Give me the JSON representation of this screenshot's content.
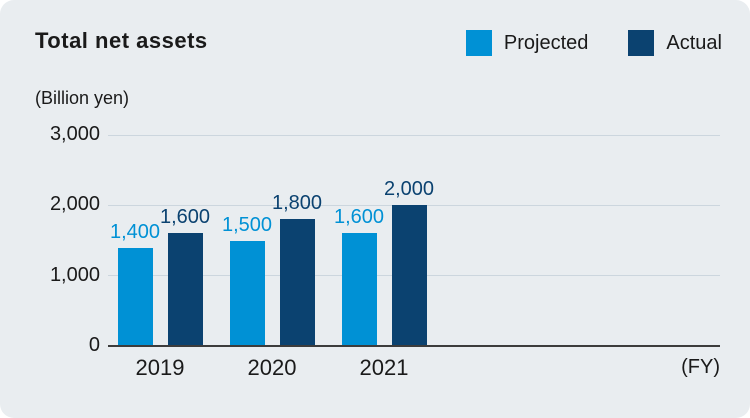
{
  "card": {
    "title": "Total net assets",
    "unit_label": "(Billion yen)",
    "fy_label": "(FY)"
  },
  "colors": {
    "card_background": "#e9edf0",
    "page_background": "#ffffff",
    "projected": "#0091d5",
    "actual": "#0b4270",
    "gridline": "#ccd6de",
    "axis_line": "#3c3c3c",
    "text": "#1a1a1a"
  },
  "chart_data": {
    "type": "bar",
    "title": "Total net assets",
    "ylabel": "(Billion yen)",
    "xlabel": "(FY)",
    "categories": [
      "2019",
      "2020",
      "2021"
    ],
    "series": [
      {
        "name": "Projected",
        "color": "#0091d5",
        "values": [
          1400,
          1500,
          1600
        ],
        "value_labels": [
          "1,400",
          "1,500",
          "1,600"
        ]
      },
      {
        "name": "Actual",
        "color": "#0b4270",
        "values": [
          1600,
          1800,
          2000
        ],
        "value_labels": [
          "1,600",
          "1,800",
          "2,000"
        ]
      }
    ],
    "ylim": [
      0,
      3000
    ],
    "yticks": [
      {
        "value": 0,
        "label": "0"
      },
      {
        "value": 1000,
        "label": "1,000"
      },
      {
        "value": 2000,
        "label": "2,000"
      },
      {
        "value": 3000,
        "label": "3,000"
      }
    ],
    "gridline_values": [
      1000,
      2000,
      3000
    ],
    "grid": true,
    "legend_position": "top-right"
  }
}
